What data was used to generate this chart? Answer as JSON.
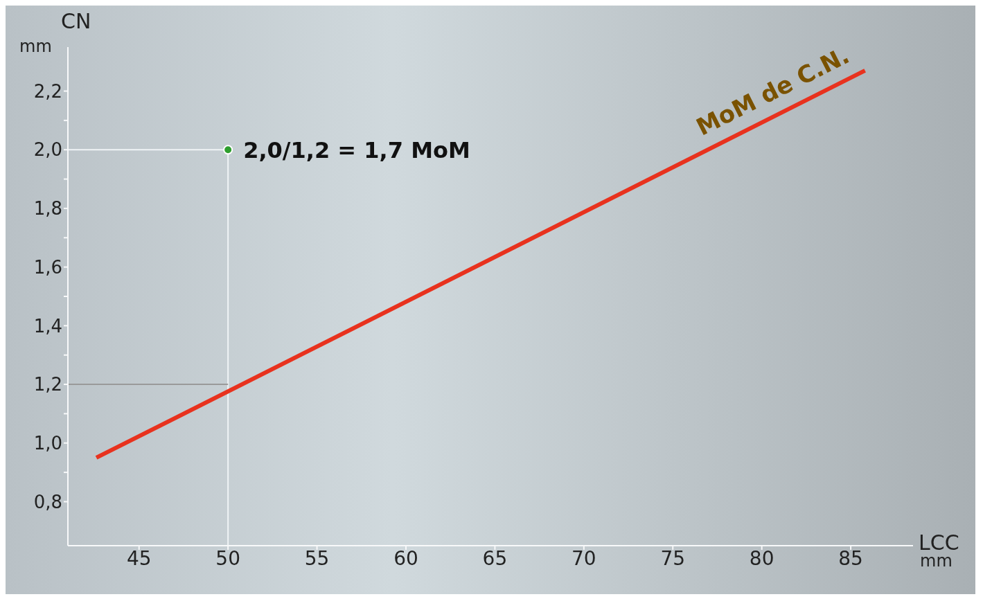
{
  "chart_data": {
    "type": "line",
    "xlabel": "LCC",
    "ylabel": "CN",
    "xlim": [
      41,
      88.5
    ],
    "ylim": [
      0.65,
      2.35
    ],
    "xticks": [
      45,
      50,
      55,
      60,
      65,
      70,
      75,
      80,
      85
    ],
    "yticks": [
      {
        "value": 0.8,
        "label": "0,8"
      },
      {
        "value": 0.9,
        "label": null
      },
      {
        "value": 1.0,
        "label": "1,0"
      },
      {
        "value": 1.1,
        "label": null
      },
      {
        "value": 1.2,
        "label": "1,2"
      },
      {
        "value": 1.3,
        "label": null
      },
      {
        "value": 1.4,
        "label": "1,4"
      },
      {
        "value": 1.5,
        "label": null
      },
      {
        "value": 1.6,
        "label": "1,6"
      },
      {
        "value": 1.7,
        "label": null
      },
      {
        "value": 1.8,
        "label": "1,8"
      },
      {
        "value": 1.9,
        "label": null
      },
      {
        "value": 2.0,
        "label": "2,0"
      },
      {
        "value": 2.1,
        "label": null
      },
      {
        "value": 2.2,
        "label": "2,2"
      }
    ],
    "series": [
      {
        "type": "line",
        "color": "#f0f4f6",
        "x": [
          41,
          50,
          50
        ],
        "values": [
          2.0,
          2.0,
          0.65
        ]
      },
      {
        "type": "line",
        "color": "#9a9a9a",
        "x": [
          50,
          41
        ],
        "values": [
          1.2,
          1.2
        ]
      },
      {
        "type": "line",
        "name": "MoM de C.N.",
        "color": "#e8321e",
        "x": [
          42.6,
          85.8
        ],
        "values": [
          0.95,
          2.27
        ]
      },
      {
        "type": "scatter",
        "color": "#2e9e2e",
        "x": [
          50
        ],
        "values": [
          2.0
        ]
      }
    ],
    "annotations": [
      {
        "text": "2,0/1,2 =  1,7 MoM",
        "x": 50,
        "y": 2.0
      },
      "mm",
      "mm"
    ],
    "grid": false,
    "legend": false
  }
}
